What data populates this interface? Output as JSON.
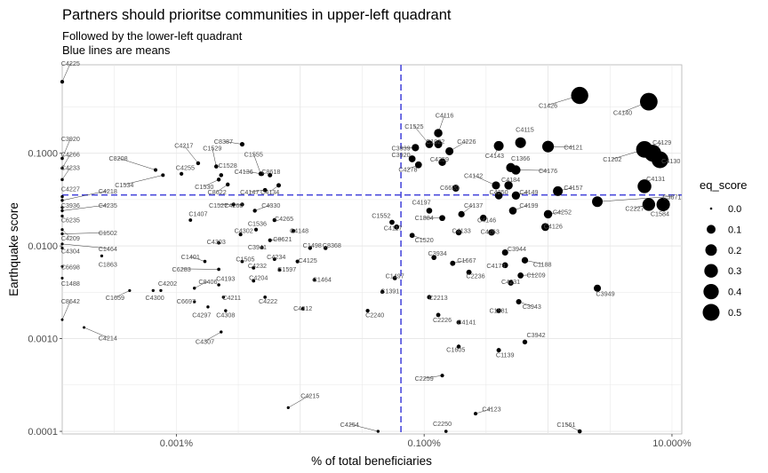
{
  "chart_data": {
    "type": "scatter",
    "title": "Partners should prioritse communities in upper-left quadrant",
    "subtitle_lines": [
      "Followed by the lower-left quadrant",
      "Blue lines are means"
    ],
    "xlabel": "% of total beneficiaries",
    "ylabel": "Earthquake score",
    "x_scale": "log10",
    "y_scale": "log10",
    "xlim": [
      0.00012,
      12
    ],
    "ylim": [
      9.37e-05,
      0.9
    ],
    "x_ticks": [
      {
        "value": 0.001,
        "label": "0.001%"
      },
      {
        "value": 0.1,
        "label": "0.100%"
      },
      {
        "value": 10,
        "label": "10.000%"
      }
    ],
    "y_ticks": [
      {
        "value": 0.0001,
        "label": "0.0001"
      },
      {
        "value": 0.001,
        "label": "0.0010"
      },
      {
        "value": 0.01,
        "label": "0.0100"
      },
      {
        "value": 0.1,
        "label": "0.1000"
      }
    ],
    "mean_lines": {
      "x": 0.065,
      "y": 0.0355,
      "color": "#4b4bdc"
    },
    "grid": true,
    "legend": {
      "title": "eq_score",
      "position": "right",
      "entries": [
        {
          "label": "0.0",
          "value": 0.0
        },
        {
          "label": "0.1",
          "value": 0.1
        },
        {
          "label": "0.2",
          "value": 0.2
        },
        {
          "label": "0.3",
          "value": 0.3
        },
        {
          "label": "0.4",
          "value": 0.4
        },
        {
          "label": "0.5",
          "value": 0.5
        }
      ]
    },
    "points": [
      {
        "label": "C4225",
        "x": 0.00012,
        "y": 0.59,
        "lx": 0.00014,
        "ly": 0.88
      },
      {
        "label": "C3920",
        "x": 0.00012,
        "y": 0.088,
        "lx": 0.00014,
        "ly": 0.135
      },
      {
        "label": "C4266",
        "x": 0.00012,
        "y": 0.069,
        "lx": 0.00014,
        "ly": 0.092
      },
      {
        "label": "C4233",
        "x": 0.00012,
        "y": 0.052,
        "lx": 0.00014,
        "ly": 0.066
      },
      {
        "label": "C4227",
        "x": 0.00012,
        "y": 0.034,
        "lx": 0.00014,
        "ly": 0.039
      },
      {
        "label": "C4218",
        "x": 0.00012,
        "y": 0.031,
        "lx": 0.00028,
        "ly": 0.037
      },
      {
        "label": "C3936",
        "x": 0.00012,
        "y": 0.026,
        "lx": 0.00014,
        "ly": 0.026
      },
      {
        "label": "C4235",
        "x": 0.00012,
        "y": 0.024,
        "lx": 0.00028,
        "ly": 0.026
      },
      {
        "label": "C6235",
        "x": 0.00012,
        "y": 0.021,
        "lx": 0.00014,
        "ly": 0.018
      },
      {
        "label": "C4209",
        "x": 0.00012,
        "y": 0.015,
        "lx": 0.00014,
        "ly": 0.0115
      },
      {
        "label": "C1502",
        "x": 0.00012,
        "y": 0.0135,
        "lx": 0.00028,
        "ly": 0.013
      },
      {
        "label": "C1464",
        "x": 0.00012,
        "y": 0.0105,
        "lx": 0.00028,
        "ly": 0.0088
      },
      {
        "label": "C4304",
        "x": 0.00012,
        "y": 0.0095,
        "lx": 0.00014,
        "ly": 0.0083
      },
      {
        "label": "C1863",
        "x": 0.00025,
        "y": 0.0078,
        "lx": 0.00028,
        "ly": 0.006
      },
      {
        "label": "C6698",
        "x": 0.00012,
        "y": 0.006,
        "lx": 0.00014,
        "ly": 0.0056
      },
      {
        "label": "C1488",
        "x": 0.00012,
        "y": 0.0045,
        "lx": 0.00014,
        "ly": 0.0037
      },
      {
        "label": "C8642",
        "x": 0.00012,
        "y": 0.0016,
        "lx": 0.00014,
        "ly": 0.0024
      },
      {
        "label": "C4214",
        "x": 0.00018,
        "y": 0.00132,
        "lx": 0.00028,
        "ly": 0.00096
      },
      {
        "label": "C8208",
        "x": 0.00068,
        "y": 0.066,
        "lx": 0.00034,
        "ly": 0.083
      },
      {
        "label": "C1534",
        "x": 0.00078,
        "y": 0.058,
        "lx": 0.00038,
        "ly": 0.043
      },
      {
        "label": "C4217",
        "x": 0.0015,
        "y": 0.078,
        "lx": 0.00115,
        "ly": 0.114
      },
      {
        "label": "C1529",
        "x": 0.0021,
        "y": 0.072,
        "lx": 0.00195,
        "ly": 0.107
      },
      {
        "label": "C4255",
        "x": 0.0011,
        "y": 0.06,
        "lx": 0.00118,
        "ly": 0.066
      },
      {
        "label": "C8387",
        "x": 0.0034,
        "y": 0.125,
        "lx": 0.0024,
        "ly": 0.126
      },
      {
        "label": "C1528",
        "x": 0.0023,
        "y": 0.058,
        "lx": 0.0026,
        "ly": 0.07
      },
      {
        "label": "C1530",
        "x": 0.0022,
        "y": 0.052,
        "lx": 0.00168,
        "ly": 0.041
      },
      {
        "label": "C8622",
        "x": 0.0026,
        "y": 0.046,
        "lx": 0.00213,
        "ly": 0.036
      },
      {
        "label": "C1555",
        "x": 0.0048,
        "y": 0.06,
        "lx": 0.0042,
        "ly": 0.092
      },
      {
        "label": "C4136",
        "x": 0.0049,
        "y": 0.06,
        "lx": 0.0035,
        "ly": 0.06
      },
      {
        "label": "C8618",
        "x": 0.0057,
        "y": 0.058,
        "lx": 0.0058,
        "ly": 0.06
      },
      {
        "label": "C4147",
        "x": 0.0052,
        "y": 0.04,
        "lx": 0.0039,
        "ly": 0.036
      },
      {
        "label": "C4134",
        "x": 0.0067,
        "y": 0.045,
        "lx": 0.0057,
        "ly": 0.036
      },
      {
        "label": "C1527",
        "x": 0.0034,
        "y": 0.028,
        "lx": 0.00218,
        "ly": 0.026
      },
      {
        "label": "C4260",
        "x": 0.0029,
        "y": 0.028,
        "lx": 0.0029,
        "ly": 0.026
      },
      {
        "label": "C4330",
        "x": 0.0043,
        "y": 0.024,
        "lx": 0.0058,
        "ly": 0.026
      },
      {
        "label": "C3939",
        "x": 0.085,
        "y": 0.115,
        "lx": 0.065,
        "ly": 0.107
      },
      {
        "label": "C1525",
        "x": 0.11,
        "y": 0.125,
        "lx": 0.083,
        "ly": 0.184
      },
      {
        "label": "C4116",
        "x": 0.13,
        "y": 0.165,
        "lx": 0.146,
        "ly": 0.242
      },
      {
        "label": "C1022",
        "x": 0.13,
        "y": 0.125,
        "lx": 0.123,
        "ly": 0.126
      },
      {
        "label": "C4226",
        "x": 0.16,
        "y": 0.105,
        "lx": 0.22,
        "ly": 0.126
      },
      {
        "label": "C4259",
        "x": 0.14,
        "y": 0.08,
        "lx": 0.133,
        "ly": 0.081
      },
      {
        "label": "C4278",
        "x": 0.09,
        "y": 0.075,
        "lx": 0.074,
        "ly": 0.063
      },
      {
        "label": "C3920",
        "x": 0.08,
        "y": 0.087,
        "lx": 0.065,
        "ly": 0.091
      },
      {
        "label": "C1426",
        "x": 1.8,
        "y": 0.42,
        "lx": 1.0,
        "ly": 0.31
      },
      {
        "label": "C4140",
        "x": 6.5,
        "y": 0.36,
        "lx": 4.0,
        "ly": 0.26
      },
      {
        "label": "C4115",
        "x": 0.6,
        "y": 0.13,
        "lx": 0.65,
        "ly": 0.17
      },
      {
        "label": "C4143",
        "x": 0.4,
        "y": 0.12,
        "lx": 0.37,
        "ly": 0.089
      },
      {
        "label": "C4121",
        "x": 1.0,
        "y": 0.118,
        "lx": 1.6,
        "ly": 0.11
      },
      {
        "label": "C1366",
        "x": 0.5,
        "y": 0.07,
        "lx": 0.6,
        "ly": 0.083
      },
      {
        "label": "C4129",
        "x": 7.0,
        "y": 0.1,
        "lx": 8.3,
        "ly": 0.124
      },
      {
        "label": "C1202",
        "x": 6.0,
        "y": 0.11,
        "lx": 3.3,
        "ly": 0.081
      },
      {
        "label": "C4130",
        "x": 8.0,
        "y": 0.085,
        "lx": 9.8,
        "ly": 0.078
      },
      {
        "label": "C4176",
        "x": 0.55,
        "y": 0.066,
        "lx": 1.0,
        "ly": 0.061
      },
      {
        "label": "C4131",
        "x": 6.0,
        "y": 0.044,
        "lx": 7.4,
        "ly": 0.05
      },
      {
        "label": "C4142",
        "x": 0.38,
        "y": 0.045,
        "lx": 0.25,
        "ly": 0.054
      },
      {
        "label": "C4184",
        "x": 0.48,
        "y": 0.045,
        "lx": 0.5,
        "ly": 0.049
      },
      {
        "label": "C4157",
        "x": 1.2,
        "y": 0.039,
        "lx": 1.6,
        "ly": 0.04
      },
      {
        "label": "C6620",
        "x": 0.18,
        "y": 0.042,
        "lx": 0.16,
        "ly": 0.04
      },
      {
        "label": "C4250",
        "x": 0.4,
        "y": 0.035,
        "lx": 0.4,
        "ly": 0.036
      },
      {
        "label": "C4149",
        "x": 0.55,
        "y": 0.035,
        "lx": 0.7,
        "ly": 0.036
      },
      {
        "label": "C3871",
        "x": 2.5,
        "y": 0.03,
        "lx": 10.0,
        "ly": 0.032
      },
      {
        "label": "C4197",
        "x": 0.11,
        "y": 0.024,
        "lx": 0.095,
        "ly": 0.028
      },
      {
        "label": "C4137",
        "x": 0.2,
        "y": 0.022,
        "lx": 0.25,
        "ly": 0.026
      },
      {
        "label": "C4199",
        "x": 0.52,
        "y": 0.024,
        "lx": 0.7,
        "ly": 0.026
      },
      {
        "label": "C2227",
        "x": 6.5,
        "y": 0.028,
        "lx": 5.0,
        "ly": 0.024
      },
      {
        "label": "C1584",
        "x": 8.5,
        "y": 0.028,
        "lx": 8.0,
        "ly": 0.021
      },
      {
        "label": "C4252",
        "x": 1.0,
        "y": 0.022,
        "lx": 1.3,
        "ly": 0.022
      },
      {
        "label": "C4146",
        "x": 0.3,
        "y": 0.02,
        "lx": 0.32,
        "ly": 0.018
      },
      {
        "label": "C1884",
        "x": 0.14,
        "y": 0.02,
        "lx": 0.1,
        "ly": 0.019
      },
      {
        "label": "C1552",
        "x": 0.055,
        "y": 0.018,
        "lx": 0.045,
        "ly": 0.02
      },
      {
        "label": "C4117",
        "x": 0.06,
        "y": 0.016,
        "lx": 0.056,
        "ly": 0.0148
      },
      {
        "label": "C4133",
        "x": 0.19,
        "y": 0.014,
        "lx": 0.2,
        "ly": 0.0138
      },
      {
        "label": "C4263",
        "x": 0.35,
        "y": 0.014,
        "lx": 0.34,
        "ly": 0.0135
      },
      {
        "label": "C4126",
        "x": 0.95,
        "y": 0.016,
        "lx": 1.1,
        "ly": 0.0155
      },
      {
        "label": "C1407",
        "x": 0.0013,
        "y": 0.019,
        "lx": 0.0015,
        "ly": 0.021
      },
      {
        "label": "C1536",
        "x": 0.0044,
        "y": 0.015,
        "lx": 0.0045,
        "ly": 0.0165
      },
      {
        "label": "C4265",
        "x": 0.0062,
        "y": 0.019,
        "lx": 0.0074,
        "ly": 0.0185
      },
      {
        "label": "C4302",
        "x": 0.0033,
        "y": 0.0133,
        "lx": 0.0035,
        "ly": 0.0138
      },
      {
        "label": "C4148",
        "x": 0.0088,
        "y": 0.0145,
        "lx": 0.0098,
        "ly": 0.0138
      },
      {
        "label": "C1520",
        "x": 0.08,
        "y": 0.013,
        "lx": 0.1,
        "ly": 0.011
      },
      {
        "label": "C4303",
        "x": 0.0022,
        "y": 0.0108,
        "lx": 0.0021,
        "ly": 0.0105
      },
      {
        "label": "C3941",
        "x": 0.0049,
        "y": 0.0096,
        "lx": 0.0045,
        "ly": 0.0092
      },
      {
        "label": "C8621",
        "x": 0.0057,
        "y": 0.0115,
        "lx": 0.0072,
        "ly": 0.0112
      },
      {
        "label": "C1498",
        "x": 0.012,
        "y": 0.0095,
        "lx": 0.0125,
        "ly": 0.0096
      },
      {
        "label": "C8368",
        "x": 0.016,
        "y": 0.0095,
        "lx": 0.018,
        "ly": 0.0096
      },
      {
        "label": "C3934",
        "x": 0.12,
        "y": 0.0075,
        "lx": 0.128,
        "ly": 0.0079
      },
      {
        "label": "C3944",
        "x": 0.45,
        "y": 0.0085,
        "lx": 0.56,
        "ly": 0.0088
      },
      {
        "label": "C1401",
        "x": 0.0017,
        "y": 0.0068,
        "lx": 0.0013,
        "ly": 0.0072
      },
      {
        "label": "C1505",
        "x": 0.0034,
        "y": 0.0068,
        "lx": 0.0036,
        "ly": 0.0068
      },
      {
        "label": "C4234",
        "x": 0.0062,
        "y": 0.0072,
        "lx": 0.0064,
        "ly": 0.0072
      },
      {
        "label": "C4125",
        "x": 0.0095,
        "y": 0.0068,
        "lx": 0.0115,
        "ly": 0.0066
      },
      {
        "label": "C1667",
        "x": 0.17,
        "y": 0.0065,
        "lx": 0.22,
        "ly": 0.0066
      },
      {
        "label": "C4174",
        "x": 0.45,
        "y": 0.0062,
        "lx": 0.38,
        "ly": 0.0058
      },
      {
        "label": "C1188",
        "x": 0.65,
        "y": 0.007,
        "lx": 0.9,
        "ly": 0.006
      },
      {
        "label": "C6283",
        "x": 0.0022,
        "y": 0.0056,
        "lx": 0.0011,
        "ly": 0.0053
      },
      {
        "label": "C4232",
        "x": 0.0042,
        "y": 0.0058,
        "lx": 0.0045,
        "ly": 0.0058
      },
      {
        "label": "C1597",
        "x": 0.0068,
        "y": 0.0055,
        "lx": 0.0078,
        "ly": 0.0053
      },
      {
        "label": "C2236",
        "x": 0.23,
        "y": 0.0052,
        "lx": 0.26,
        "ly": 0.0045
      },
      {
        "label": "C1209",
        "x": 0.6,
        "y": 0.0048,
        "lx": 0.8,
        "ly": 0.0046
      },
      {
        "label": "C4204",
        "x": 0.0042,
        "y": 0.0042,
        "lx": 0.0046,
        "ly": 0.0043
      },
      {
        "label": "C1464",
        "x": 0.013,
        "y": 0.0043,
        "lx": 0.015,
        "ly": 0.0041
      },
      {
        "label": "C1497",
        "x": 0.058,
        "y": 0.0045,
        "lx": 0.058,
        "ly": 0.0045
      },
      {
        "label": "C4231",
        "x": 0.5,
        "y": 0.004,
        "lx": 0.5,
        "ly": 0.0039
      },
      {
        "label": "C4193",
        "x": 0.0022,
        "y": 0.0038,
        "lx": 0.0025,
        "ly": 0.0042
      },
      {
        "label": "C4202",
        "x": 0.00075,
        "y": 0.0033,
        "lx": 0.00085,
        "ly": 0.0037
      },
      {
        "label": "C8406",
        "x": 0.0014,
        "y": 0.0035,
        "lx": 0.0018,
        "ly": 0.0039
      },
      {
        "label": "C1391",
        "x": 0.046,
        "y": 0.0032,
        "lx": 0.053,
        "ly": 0.0031
      },
      {
        "label": "C3949",
        "x": 2.5,
        "y": 0.0035,
        "lx": 2.9,
        "ly": 0.0029
      },
      {
        "label": "C1659",
        "x": 0.00042,
        "y": 0.0033,
        "lx": 0.00032,
        "ly": 0.0026
      },
      {
        "label": "C4300",
        "x": 0.00065,
        "y": 0.0033,
        "lx": 0.00067,
        "ly": 0.0026
      },
      {
        "label": "C6697",
        "x": 0.0014,
        "y": 0.0025,
        "lx": 0.0012,
        "ly": 0.0024
      },
      {
        "label": "C4211",
        "x": 0.0024,
        "y": 0.0028,
        "lx": 0.0028,
        "ly": 0.0026
      },
      {
        "label": "C4222",
        "x": 0.0052,
        "y": 0.0028,
        "lx": 0.0055,
        "ly": 0.0024
      },
      {
        "label": "C2213",
        "x": 0.11,
        "y": 0.0028,
        "lx": 0.13,
        "ly": 0.0026
      },
      {
        "label": "C3943",
        "x": 0.58,
        "y": 0.0025,
        "lx": 0.74,
        "ly": 0.0021
      },
      {
        "label": "C4297",
        "x": 0.0018,
        "y": 0.0022,
        "lx": 0.0016,
        "ly": 0.0017
      },
      {
        "label": "C4308",
        "x": 0.0025,
        "y": 0.002,
        "lx": 0.0025,
        "ly": 0.0017
      },
      {
        "label": "C4212",
        "x": 0.0105,
        "y": 0.0021,
        "lx": 0.0105,
        "ly": 0.002
      },
      {
        "label": "C2240",
        "x": 0.035,
        "y": 0.002,
        "lx": 0.04,
        "ly": 0.0017
      },
      {
        "label": "C2226",
        "x": 0.13,
        "y": 0.0018,
        "lx": 0.14,
        "ly": 0.0015
      },
      {
        "label": "C1581",
        "x": 0.4,
        "y": 0.002,
        "lx": 0.4,
        "ly": 0.0019
      },
      {
        "label": "C4141",
        "x": 0.19,
        "y": 0.0015,
        "lx": 0.22,
        "ly": 0.00143
      },
      {
        "label": "C4307",
        "x": 0.0023,
        "y": 0.00118,
        "lx": 0.0017,
        "ly": 0.00088
      },
      {
        "label": "C3942",
        "x": 0.65,
        "y": 0.00092,
        "lx": 0.8,
        "ly": 0.00104
      },
      {
        "label": "C1605",
        "x": 0.19,
        "y": 0.00082,
        "lx": 0.18,
        "ly": 0.00072
      },
      {
        "label": "C1139",
        "x": 0.4,
        "y": 0.00075,
        "lx": 0.45,
        "ly": 0.00063
      },
      {
        "label": "C2259",
        "x": 0.14,
        "y": 0.0004,
        "lx": 0.1,
        "ly": 0.00035
      },
      {
        "label": "C4215",
        "x": 0.008,
        "y": 0.00018,
        "lx": 0.012,
        "ly": 0.00023
      },
      {
        "label": "C4123",
        "x": 0.26,
        "y": 0.000155,
        "lx": 0.35,
        "ly": 0.000165
      },
      {
        "label": "C4254",
        "x": 0.0425,
        "y": 0.0001,
        "lx": 0.025,
        "ly": 0.000112
      },
      {
        "label": "C2250",
        "x": 0.15,
        "y": 0.0001,
        "lx": 0.14,
        "ly": 0.000114
      },
      {
        "label": "C1561",
        "x": 1.8,
        "y": 0.0001,
        "lx": 1.4,
        "ly": 0.000112
      }
    ]
  }
}
